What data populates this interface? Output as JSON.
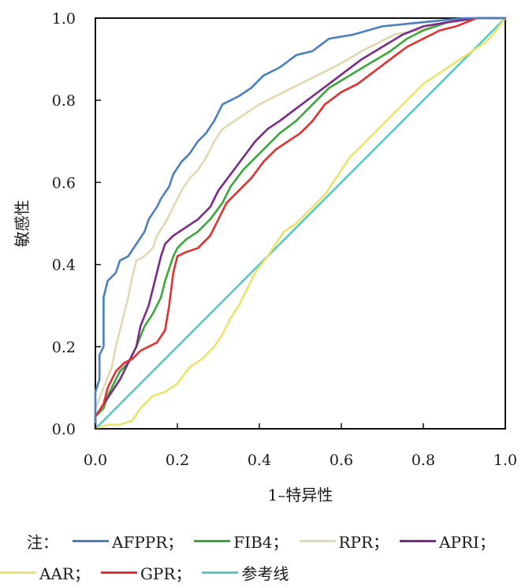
{
  "chart_data": {
    "type": "line",
    "title": "",
    "xlabel": "1–特异性",
    "ylabel": "敏感性",
    "xlim": [
      0,
      1
    ],
    "ylim": [
      0,
      1
    ],
    "xticks": [
      "0.0",
      "0.2",
      "0.4",
      "0.6",
      "0.8",
      "1.0"
    ],
    "yticks": [
      "0.0",
      "0.2",
      "0.4",
      "0.6",
      "0.8",
      "1.0"
    ],
    "grid": false,
    "legend_placement": "bottom",
    "series": [
      {
        "name": "AFPPR",
        "color": "#4a7fc1",
        "points": [
          [
            0,
            0
          ],
          [
            0,
            0.09
          ],
          [
            0.01,
            0.12
          ],
          [
            0.01,
            0.18
          ],
          [
            0.02,
            0.2
          ],
          [
            0.02,
            0.32
          ],
          [
            0.03,
            0.36
          ],
          [
            0.05,
            0.38
          ],
          [
            0.06,
            0.41
          ],
          [
            0.08,
            0.42
          ],
          [
            0.1,
            0.45
          ],
          [
            0.12,
            0.48
          ],
          [
            0.13,
            0.51
          ],
          [
            0.15,
            0.54
          ],
          [
            0.16,
            0.56
          ],
          [
            0.18,
            0.59
          ],
          [
            0.19,
            0.62
          ],
          [
            0.21,
            0.65
          ],
          [
            0.23,
            0.67
          ],
          [
            0.25,
            0.7
          ],
          [
            0.27,
            0.72
          ],
          [
            0.29,
            0.75
          ],
          [
            0.31,
            0.79
          ],
          [
            0.33,
            0.8
          ],
          [
            0.35,
            0.81
          ],
          [
            0.38,
            0.83
          ],
          [
            0.41,
            0.86
          ],
          [
            0.45,
            0.88
          ],
          [
            0.49,
            0.91
          ],
          [
            0.53,
            0.92
          ],
          [
            0.57,
            0.95
          ],
          [
            0.63,
            0.96
          ],
          [
            0.7,
            0.98
          ],
          [
            0.8,
            0.99
          ],
          [
            0.9,
            1
          ],
          [
            1,
            1
          ]
        ]
      },
      {
        "name": "FIB4",
        "color": "#3aa83a",
        "points": [
          [
            0,
            0
          ],
          [
            0,
            0.03
          ],
          [
            0.02,
            0.05
          ],
          [
            0.03,
            0.08
          ],
          [
            0.04,
            0.1
          ],
          [
            0.06,
            0.14
          ],
          [
            0.08,
            0.16
          ],
          [
            0.1,
            0.2
          ],
          [
            0.12,
            0.25
          ],
          [
            0.14,
            0.28
          ],
          [
            0.16,
            0.32
          ],
          [
            0.17,
            0.36
          ],
          [
            0.18,
            0.39
          ],
          [
            0.19,
            0.42
          ],
          [
            0.2,
            0.44
          ],
          [
            0.22,
            0.46
          ],
          [
            0.25,
            0.48
          ],
          [
            0.28,
            0.51
          ],
          [
            0.31,
            0.55
          ],
          [
            0.33,
            0.59
          ],
          [
            0.36,
            0.63
          ],
          [
            0.39,
            0.66
          ],
          [
            0.42,
            0.69
          ],
          [
            0.45,
            0.72
          ],
          [
            0.49,
            0.75
          ],
          [
            0.53,
            0.79
          ],
          [
            0.57,
            0.83
          ],
          [
            0.62,
            0.86
          ],
          [
            0.67,
            0.89
          ],
          [
            0.72,
            0.92
          ],
          [
            0.76,
            0.95
          ],
          [
            0.8,
            0.97
          ],
          [
            0.86,
            0.99
          ],
          [
            0.93,
            1
          ],
          [
            1,
            1
          ]
        ]
      },
      {
        "name": "RPR",
        "color": "#e3d8b0",
        "points": [
          [
            0,
            0
          ],
          [
            0,
            0.05
          ],
          [
            0.02,
            0.1
          ],
          [
            0.04,
            0.15
          ],
          [
            0.05,
            0.2
          ],
          [
            0.06,
            0.24
          ],
          [
            0.07,
            0.28
          ],
          [
            0.08,
            0.32
          ],
          [
            0.09,
            0.37
          ],
          [
            0.1,
            0.41
          ],
          [
            0.12,
            0.42
          ],
          [
            0.14,
            0.44
          ],
          [
            0.15,
            0.47
          ],
          [
            0.17,
            0.5
          ],
          [
            0.19,
            0.54
          ],
          [
            0.21,
            0.58
          ],
          [
            0.23,
            0.61
          ],
          [
            0.25,
            0.63
          ],
          [
            0.27,
            0.66
          ],
          [
            0.29,
            0.7
          ],
          [
            0.31,
            0.73
          ],
          [
            0.34,
            0.75
          ],
          [
            0.37,
            0.77
          ],
          [
            0.4,
            0.79
          ],
          [
            0.44,
            0.81
          ],
          [
            0.48,
            0.83
          ],
          [
            0.52,
            0.85
          ],
          [
            0.56,
            0.87
          ],
          [
            0.6,
            0.89
          ],
          [
            0.65,
            0.92
          ],
          [
            0.69,
            0.94
          ],
          [
            0.73,
            0.96
          ],
          [
            0.79,
            0.97
          ],
          [
            0.86,
            0.99
          ],
          [
            0.93,
            1
          ],
          [
            1,
            1
          ]
        ]
      },
      {
        "name": "APRI",
        "color": "#7b2a8c",
        "points": [
          [
            0,
            0
          ],
          [
            0,
            0.03
          ],
          [
            0.02,
            0.06
          ],
          [
            0.04,
            0.09
          ],
          [
            0.06,
            0.12
          ],
          [
            0.08,
            0.16
          ],
          [
            0.1,
            0.2
          ],
          [
            0.11,
            0.25
          ],
          [
            0.13,
            0.3
          ],
          [
            0.14,
            0.34
          ],
          [
            0.15,
            0.38
          ],
          [
            0.16,
            0.42
          ],
          [
            0.17,
            0.45
          ],
          [
            0.19,
            0.47
          ],
          [
            0.22,
            0.49
          ],
          [
            0.25,
            0.51
          ],
          [
            0.28,
            0.54
          ],
          [
            0.3,
            0.58
          ],
          [
            0.33,
            0.62
          ],
          [
            0.36,
            0.66
          ],
          [
            0.39,
            0.7
          ],
          [
            0.42,
            0.73
          ],
          [
            0.45,
            0.75
          ],
          [
            0.49,
            0.78
          ],
          [
            0.53,
            0.81
          ],
          [
            0.57,
            0.84
          ],
          [
            0.61,
            0.87
          ],
          [
            0.65,
            0.9
          ],
          [
            0.7,
            0.93
          ],
          [
            0.75,
            0.96
          ],
          [
            0.8,
            0.98
          ],
          [
            0.86,
            0.99
          ],
          [
            0.93,
            1
          ],
          [
            1,
            1
          ]
        ]
      },
      {
        "name": "AAR",
        "color": "#ede36a",
        "points": [
          [
            0,
            0
          ],
          [
            0.03,
            0.01
          ],
          [
            0.06,
            0.01
          ],
          [
            0.09,
            0.02
          ],
          [
            0.11,
            0.05
          ],
          [
            0.14,
            0.08
          ],
          [
            0.17,
            0.09
          ],
          [
            0.2,
            0.11
          ],
          [
            0.23,
            0.15
          ],
          [
            0.26,
            0.17
          ],
          [
            0.29,
            0.2
          ],
          [
            0.31,
            0.23
          ],
          [
            0.33,
            0.27
          ],
          [
            0.35,
            0.3
          ],
          [
            0.37,
            0.34
          ],
          [
            0.39,
            0.38
          ],
          [
            0.42,
            0.42
          ],
          [
            0.44,
            0.45
          ],
          [
            0.46,
            0.48
          ],
          [
            0.49,
            0.5
          ],
          [
            0.52,
            0.53
          ],
          [
            0.54,
            0.55
          ],
          [
            0.56,
            0.57
          ],
          [
            0.58,
            0.6
          ],
          [
            0.6,
            0.63
          ],
          [
            0.62,
            0.66
          ],
          [
            0.64,
            0.68
          ],
          [
            0.66,
            0.7
          ],
          [
            0.68,
            0.72
          ],
          [
            0.7,
            0.74
          ],
          [
            0.72,
            0.76
          ],
          [
            0.74,
            0.78
          ],
          [
            0.76,
            0.8
          ],
          [
            0.78,
            0.82
          ],
          [
            0.8,
            0.84
          ],
          [
            0.83,
            0.86
          ],
          [
            0.86,
            0.88
          ],
          [
            0.89,
            0.9
          ],
          [
            0.92,
            0.92
          ],
          [
            0.95,
            0.94
          ],
          [
            0.97,
            0.96
          ],
          [
            1,
            1
          ]
        ]
      },
      {
        "name": "GPR",
        "color": "#e53030",
        "points": [
          [
            0,
            0
          ],
          [
            0,
            0.03
          ],
          [
            0.02,
            0.06
          ],
          [
            0.03,
            0.1
          ],
          [
            0.05,
            0.14
          ],
          [
            0.07,
            0.16
          ],
          [
            0.09,
            0.17
          ],
          [
            0.11,
            0.19
          ],
          [
            0.13,
            0.2
          ],
          [
            0.15,
            0.21
          ],
          [
            0.17,
            0.24
          ],
          [
            0.18,
            0.3
          ],
          [
            0.19,
            0.38
          ],
          [
            0.2,
            0.42
          ],
          [
            0.22,
            0.43
          ],
          [
            0.25,
            0.44
          ],
          [
            0.28,
            0.47
          ],
          [
            0.3,
            0.51
          ],
          [
            0.32,
            0.55
          ],
          [
            0.35,
            0.58
          ],
          [
            0.38,
            0.61
          ],
          [
            0.41,
            0.65
          ],
          [
            0.44,
            0.68
          ],
          [
            0.47,
            0.7
          ],
          [
            0.5,
            0.72
          ],
          [
            0.53,
            0.75
          ],
          [
            0.56,
            0.79
          ],
          [
            0.6,
            0.82
          ],
          [
            0.64,
            0.84
          ],
          [
            0.68,
            0.87
          ],
          [
            0.72,
            0.9
          ],
          [
            0.76,
            0.93
          ],
          [
            0.8,
            0.95
          ],
          [
            0.84,
            0.97
          ],
          [
            0.88,
            0.98
          ],
          [
            0.93,
            1
          ],
          [
            1,
            1
          ]
        ]
      },
      {
        "name": "参考线",
        "color": "#5bc7c7",
        "points": [
          [
            0,
            0
          ],
          [
            1,
            1
          ]
        ]
      }
    ]
  },
  "legend": {
    "note": "注：",
    "separator": "；"
  }
}
